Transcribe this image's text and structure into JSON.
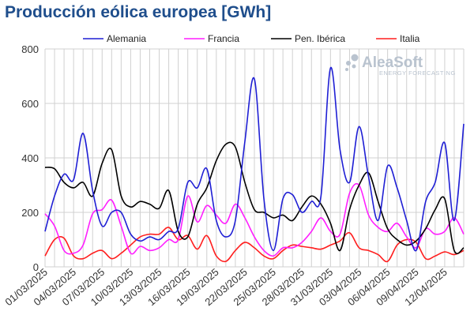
{
  "chart_data": {
    "type": "line",
    "title": "Producción eólica europea [GWh]",
    "xlabel": "",
    "ylabel": "",
    "ylim": [
      0,
      800
    ],
    "yticks": [
      0,
      200,
      400,
      600,
      800
    ],
    "x_start": "2025-03-01",
    "x_end": "2025-04-14",
    "xtick_labels": [
      "01/03/2025",
      "04/03/2025",
      "07/03/2025",
      "10/03/2025",
      "13/03/2025",
      "16/03/2025",
      "19/03/2025",
      "22/03/2025",
      "25/03/2025",
      "28/03/2025",
      "31/03/2025",
      "03/04/2025",
      "06/04/2025",
      "09/04/2025",
      "12/04/2025"
    ],
    "xtick_dates": [
      "2025-03-01",
      "2025-03-04",
      "2025-03-07",
      "2025-03-10",
      "2025-03-13",
      "2025-03-16",
      "2025-03-19",
      "2025-03-22",
      "2025-03-25",
      "2025-03-28",
      "2025-03-31",
      "2025-04-03",
      "2025-04-06",
      "2025-04-09",
      "2025-04-12"
    ],
    "grid": true,
    "legend_position": "top",
    "series": [
      {
        "name": "Alemania",
        "color": "#1f1fd4",
        "x": [
          "2025-03-01",
          "2025-03-02",
          "2025-03-03",
          "2025-03-04",
          "2025-03-05",
          "2025-03-06",
          "2025-03-07",
          "2025-03-08",
          "2025-03-09",
          "2025-03-10",
          "2025-03-11",
          "2025-03-12",
          "2025-03-13",
          "2025-03-14",
          "2025-03-15",
          "2025-03-16",
          "2025-03-17",
          "2025-03-18",
          "2025-03-19",
          "2025-03-20",
          "2025-03-21",
          "2025-03-22",
          "2025-03-23",
          "2025-03-24",
          "2025-03-25",
          "2025-03-26",
          "2025-03-27",
          "2025-03-28",
          "2025-03-29",
          "2025-03-30",
          "2025-03-31",
          "2025-04-01",
          "2025-04-02",
          "2025-04-03",
          "2025-04-04",
          "2025-04-05",
          "2025-04-06",
          "2025-04-07",
          "2025-04-08",
          "2025-04-09",
          "2025-04-10",
          "2025-04-11",
          "2025-04-12",
          "2025-04-13",
          "2025-04-14"
        ],
        "values": [
          130,
          260,
          340,
          320,
          490,
          280,
          150,
          200,
          200,
          120,
          95,
          110,
          100,
          130,
          140,
          310,
          290,
          360,
          170,
          110,
          170,
          460,
          690,
          250,
          60,
          250,
          265,
          200,
          240,
          260,
          730,
          430,
          310,
          515,
          330,
          170,
          370,
          290,
          170,
          60,
          240,
          310,
          455,
          170,
          525
        ]
      },
      {
        "name": "Francia",
        "color": "#ff1fff",
        "x": [
          "2025-03-01",
          "2025-03-02",
          "2025-03-03",
          "2025-03-04",
          "2025-03-05",
          "2025-03-06",
          "2025-03-07",
          "2025-03-08",
          "2025-03-09",
          "2025-03-10",
          "2025-03-11",
          "2025-03-12",
          "2025-03-13",
          "2025-03-14",
          "2025-03-15",
          "2025-03-16",
          "2025-03-17",
          "2025-03-18",
          "2025-03-19",
          "2025-03-20",
          "2025-03-21",
          "2025-03-22",
          "2025-03-23",
          "2025-03-24",
          "2025-03-25",
          "2025-03-26",
          "2025-03-27",
          "2025-03-28",
          "2025-03-29",
          "2025-03-30",
          "2025-03-31",
          "2025-04-01",
          "2025-04-02",
          "2025-04-03",
          "2025-04-04",
          "2025-04-05",
          "2025-04-06",
          "2025-04-07",
          "2025-04-08",
          "2025-04-09",
          "2025-04-10",
          "2025-04-11",
          "2025-04-12",
          "2025-04-13",
          "2025-04-14"
        ],
        "values": [
          195,
          150,
          60,
          50,
          80,
          195,
          210,
          245,
          150,
          50,
          75,
          60,
          70,
          100,
          100,
          260,
          165,
          225,
          190,
          160,
          230,
          180,
          110,
          60,
          40,
          70,
          70,
          90,
          130,
          180,
          130,
          120,
          270,
          300,
          190,
          145,
          130,
          160,
          110,
          70,
          140,
          120,
          130,
          180,
          120
        ]
      },
      {
        "name": "Pen. Ibérica",
        "color": "#000000",
        "x": [
          "2025-03-01",
          "2025-03-02",
          "2025-03-03",
          "2025-03-04",
          "2025-03-05",
          "2025-03-06",
          "2025-03-07",
          "2025-03-08",
          "2025-03-09",
          "2025-03-10",
          "2025-03-11",
          "2025-03-12",
          "2025-03-13",
          "2025-03-14",
          "2025-03-15",
          "2025-03-16",
          "2025-03-17",
          "2025-03-18",
          "2025-03-19",
          "2025-03-20",
          "2025-03-21",
          "2025-03-22",
          "2025-03-23",
          "2025-03-24",
          "2025-03-25",
          "2025-03-26",
          "2025-03-27",
          "2025-03-28",
          "2025-03-29",
          "2025-03-30",
          "2025-03-31",
          "2025-04-01",
          "2025-04-02",
          "2025-04-03",
          "2025-04-04",
          "2025-04-05",
          "2025-04-06",
          "2025-04-07",
          "2025-04-08",
          "2025-04-09",
          "2025-04-10",
          "2025-04-11",
          "2025-04-12",
          "2025-04-13",
          "2025-04-14"
        ],
        "values": [
          365,
          360,
          310,
          290,
          310,
          260,
          380,
          430,
          260,
          220,
          240,
          230,
          215,
          280,
          130,
          110,
          230,
          290,
          390,
          450,
          440,
          310,
          210,
          200,
          180,
          190,
          170,
          220,
          260,
          230,
          160,
          60,
          210,
          300,
          345,
          240,
          140,
          100,
          80,
          95,
          140,
          210,
          250,
          60,
          70
        ]
      },
      {
        "name": "Italia",
        "color": "#ff1f1f",
        "x": [
          "2025-03-01",
          "2025-03-02",
          "2025-03-03",
          "2025-03-04",
          "2025-03-05",
          "2025-03-06",
          "2025-03-07",
          "2025-03-08",
          "2025-03-09",
          "2025-03-10",
          "2025-03-11",
          "2025-03-12",
          "2025-03-13",
          "2025-03-14",
          "2025-03-15",
          "2025-03-16",
          "2025-03-17",
          "2025-03-18",
          "2025-03-19",
          "2025-03-20",
          "2025-03-21",
          "2025-03-22",
          "2025-03-23",
          "2025-03-24",
          "2025-03-25",
          "2025-03-26",
          "2025-03-27",
          "2025-03-28",
          "2025-03-29",
          "2025-03-30",
          "2025-03-31",
          "2025-04-01",
          "2025-04-02",
          "2025-04-03",
          "2025-04-04",
          "2025-04-05",
          "2025-04-06",
          "2025-04-07",
          "2025-04-08",
          "2025-04-09",
          "2025-04-10",
          "2025-04-11",
          "2025-04-12",
          "2025-04-13",
          "2025-04-14"
        ],
        "values": [
          40,
          100,
          105,
          40,
          30,
          50,
          60,
          30,
          50,
          80,
          110,
          120,
          120,
          145,
          100,
          115,
          65,
          115,
          40,
          20,
          60,
          90,
          70,
          40,
          30,
          60,
          80,
          75,
          70,
          65,
          80,
          95,
          125,
          70,
          60,
          45,
          20,
          80,
          100,
          90,
          30,
          40,
          55,
          45,
          60
        ]
      }
    ]
  },
  "watermark": {
    "brand": "AleaSoft",
    "tagline": "ENERGY FORECASTING"
  }
}
